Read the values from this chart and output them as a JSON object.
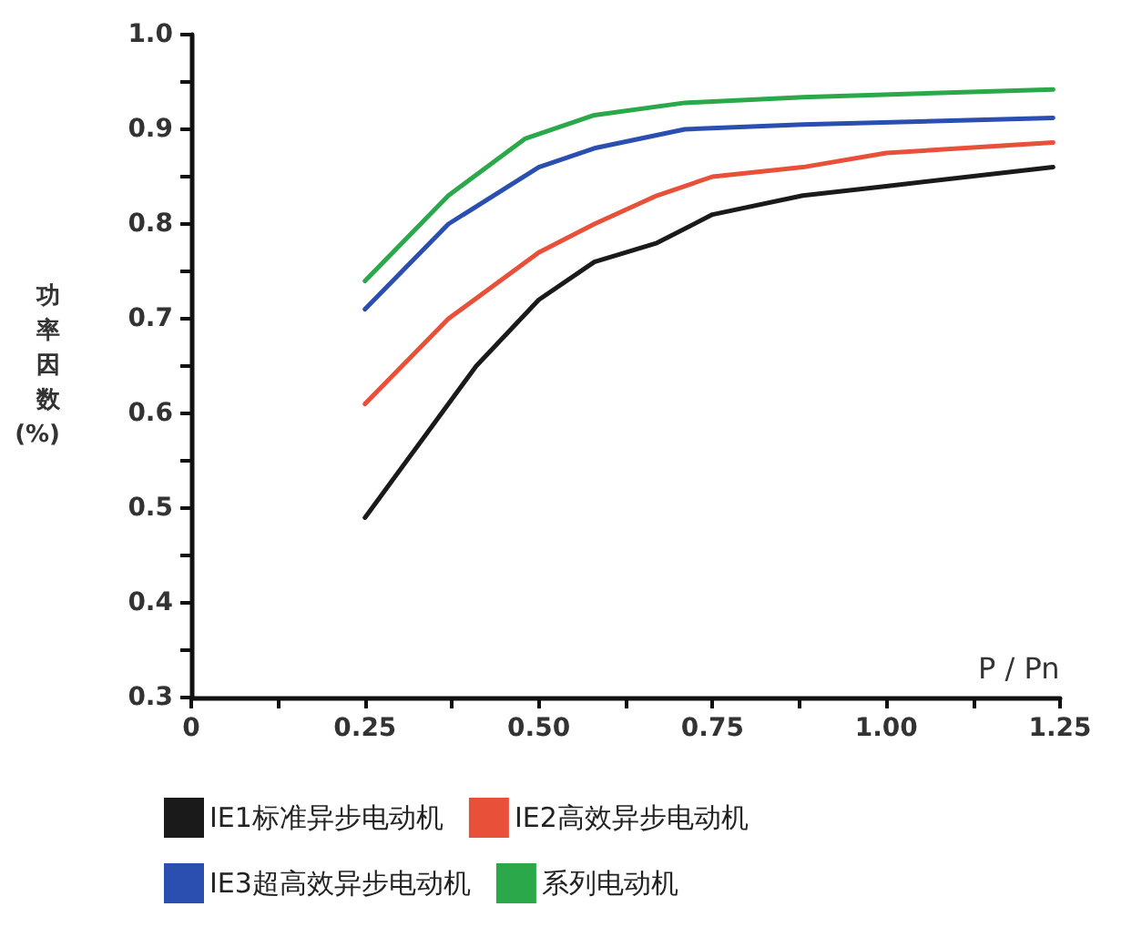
{
  "chart_data": {
    "type": "line",
    "xlabel": "P / Pn",
    "ylabel": "功率因数(%)",
    "xlim": [
      0,
      1.25
    ],
    "ylim": [
      0.3,
      1.0
    ],
    "xticks": [
      0,
      {
        "value": 0.125,
        "label": null
      },
      0.25,
      {
        "value": 0.375,
        "label": null
      },
      {
        "value": 0.5,
        "label": "0.50"
      },
      {
        "value": 0.625,
        "label": null
      },
      0.75,
      {
        "value": 0.875,
        "label": null
      },
      {
        "value": 1,
        "label": "1.00"
      },
      {
        "value": 1.125,
        "label": null
      },
      1.25
    ],
    "yticks": [
      0.3,
      {
        "value": 0.35,
        "label": null
      },
      0.4,
      {
        "value": 0.45,
        "label": null
      },
      0.5,
      {
        "value": 0.55,
        "label": null
      },
      0.6,
      {
        "value": 0.65,
        "label": null
      },
      0.7,
      {
        "value": 0.75,
        "label": null
      },
      0.8,
      {
        "value": 0.85,
        "label": null
      },
      0.9,
      {
        "value": 0.95,
        "label": null
      },
      {
        "value": 1,
        "label": "1.0"
      }
    ],
    "grid": false,
    "legend": "bottom",
    "marker": "none",
    "line_style": "solid",
    "series": [
      {
        "name": "IE1标准异步电动机",
        "color": "#1a1a1a",
        "x": [
          0.25,
          0.33,
          0.41,
          0.5,
          0.58,
          0.67,
          0.75,
          0.88,
          1.0,
          1.24
        ],
        "values": [
          0.49,
          0.57,
          0.65,
          0.72,
          0.76,
          0.78,
          0.81,
          0.83,
          0.84,
          0.86
        ]
      },
      {
        "name": "IE2高效异步电动机",
        "color": "#e8503a",
        "x": [
          0.25,
          0.37,
          0.5,
          0.58,
          0.67,
          0.75,
          0.88,
          1.0,
          1.24
        ],
        "values": [
          0.61,
          0.7,
          0.77,
          0.8,
          0.83,
          0.85,
          0.86,
          0.875,
          0.886
        ]
      },
      {
        "name": "IE3超高效异步电动机",
        "color": "#2a4fb0",
        "x": [
          0.25,
          0.37,
          0.5,
          0.58,
          0.71,
          0.88,
          1.24
        ],
        "values": [
          0.71,
          0.8,
          0.86,
          0.88,
          0.9,
          0.905,
          0.912
        ]
      },
      {
        "name": "系列电动机",
        "color": "#2aa84a",
        "x": [
          0.25,
          0.37,
          0.48,
          0.58,
          0.71,
          0.88,
          1.24
        ],
        "values": [
          0.74,
          0.83,
          0.89,
          0.915,
          0.928,
          0.934,
          0.942
        ]
      }
    ]
  }
}
